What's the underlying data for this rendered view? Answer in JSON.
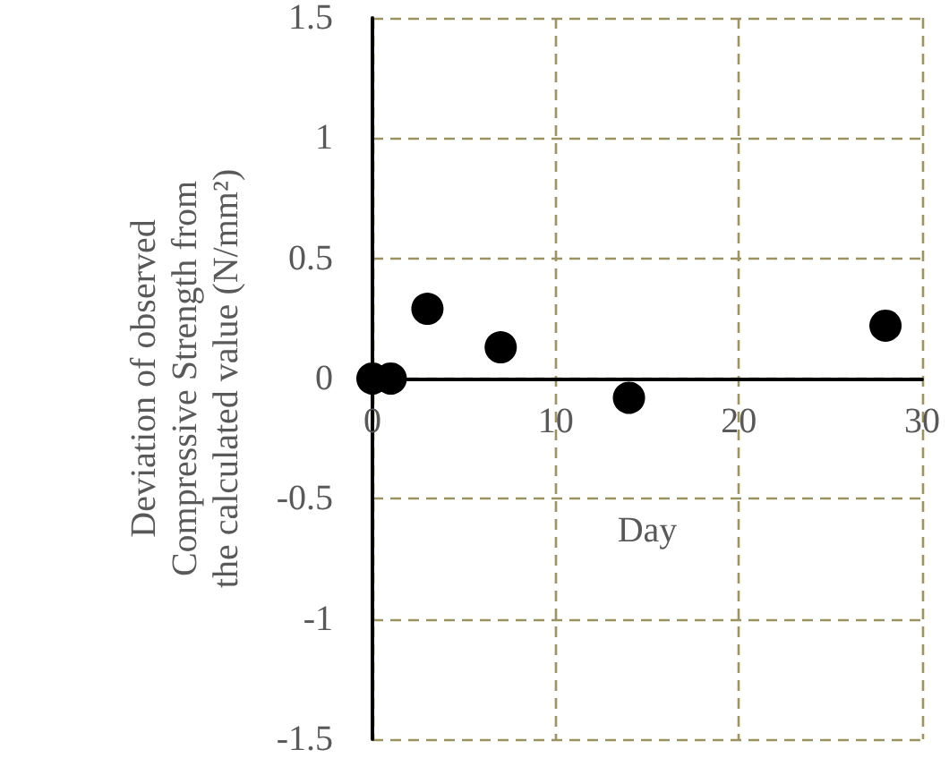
{
  "chart_data": {
    "type": "scatter",
    "xlabel": "Day",
    "ylabel": "Deviation of observed Compressive Strength from the calculated value (N/mm²)",
    "x": [
      0,
      1,
      3,
      7,
      14,
      28
    ],
    "values": [
      0,
      0,
      0.29,
      0.13,
      -0.08,
      0.22
    ],
    "color": "#000000",
    "marker": "circle",
    "xlim": [
      0,
      30
    ],
    "xticks": [
      0,
      10,
      20,
      30
    ],
    "ylim": [
      -1.5,
      1.5
    ],
    "yticks": [
      -1.5,
      -1,
      -0.5,
      0,
      0.5,
      1,
      1.5
    ],
    "grid": true
  }
}
